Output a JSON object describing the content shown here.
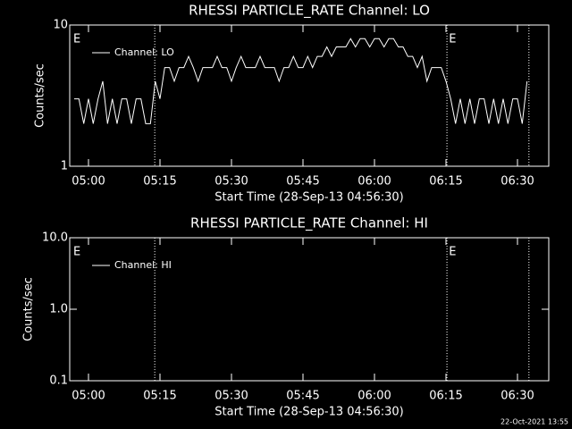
{
  "chart_data": [
    {
      "type": "line",
      "title": "RHESSI PARTICLE_RATE Channel: LO",
      "xlabel": "Start Time (28-Sep-13 04:56:30)",
      "ylabel": "Counts/sec",
      "x": [
        297,
        298,
        299,
        300,
        301,
        302,
        303,
        304,
        305,
        306,
        307,
        308,
        309,
        310,
        311,
        312,
        313,
        314,
        315,
        316,
        317,
        318,
        319,
        320,
        321,
        322,
        323,
        324,
        325,
        326,
        327,
        328,
        329,
        330,
        331,
        332,
        333,
        334,
        335,
        336,
        337,
        338,
        339,
        340,
        341,
        342,
        343,
        344,
        345,
        346,
        347,
        348,
        349,
        350,
        351,
        352,
        353,
        354,
        355,
        356,
        357,
        358,
        359,
        360,
        361,
        362,
        363,
        364,
        365,
        366,
        367,
        368,
        369,
        370,
        371,
        372,
        373,
        374,
        375,
        376,
        377,
        378,
        379,
        380,
        381,
        382,
        383,
        384,
        385,
        386,
        387,
        388,
        389,
        390,
        391,
        392
      ],
      "series": [
        {
          "name": "Channel: LO",
          "color": "#ffffff",
          "values": [
            3,
            3,
            2,
            3,
            2,
            3,
            4,
            2,
            3,
            2,
            3,
            3,
            2,
            3,
            3,
            2,
            2,
            4,
            3,
            5,
            5,
            4,
            5,
            5,
            6,
            5,
            4,
            5,
            5,
            5,
            6,
            5,
            5,
            4,
            5,
            6,
            5,
            5,
            5,
            6,
            5,
            5,
            5,
            4,
            5,
            5,
            6,
            5,
            5,
            6,
            5,
            6,
            6,
            7,
            6,
            7,
            7,
            7,
            8,
            7,
            8,
            8,
            7,
            8,
            8,
            7,
            8,
            8,
            7,
            7,
            6,
            6,
            5,
            6,
            4,
            5,
            5,
            5,
            4,
            3,
            2,
            3,
            2,
            3,
            2,
            3,
            3,
            2,
            3,
            2,
            3,
            2,
            3,
            3,
            2,
            4
          ]
        }
      ],
      "xlim": [
        296.06,
        396.56
      ],
      "xticks": [
        {
          "value": 300,
          "label": "05:00"
        },
        {
          "value": 315,
          "label": "05:15"
        },
        {
          "value": 330,
          "label": "05:30"
        },
        {
          "value": 345,
          "label": "05:45"
        },
        {
          "value": 360,
          "label": "06:00"
        },
        {
          "value": 375,
          "label": "06:15"
        },
        {
          "value": 390,
          "label": "06:30"
        }
      ],
      "ylim": [
        1,
        10
      ],
      "yticks": [
        1,
        10
      ],
      "log_y": true,
      "vlines": [
        313.9,
        375.2,
        392.4
      ],
      "flags": [
        {
          "x": 296.8,
          "label": "E"
        },
        {
          "x": 375.6,
          "label": "E"
        }
      ]
    },
    {
      "type": "line",
      "title": "RHESSI PARTICLE_RATE Channel: HI",
      "xlabel": "Start Time (28-Sep-13 04:56:30)",
      "ylabel": "Counts/sec",
      "x": [],
      "series": [
        {
          "name": "Channel: HI",
          "color": "#ffffff",
          "values": []
        }
      ],
      "xlim": [
        296.06,
        396.56
      ],
      "xticks": [
        {
          "value": 300,
          "label": "05:00"
        },
        {
          "value": 315,
          "label": "05:15"
        },
        {
          "value": 330,
          "label": "05:30"
        },
        {
          "value": 345,
          "label": "05:45"
        },
        {
          "value": 360,
          "label": "06:00"
        },
        {
          "value": 375,
          "label": "06:15"
        },
        {
          "value": 390,
          "label": "06:30"
        }
      ],
      "ylim": [
        0.1,
        10
      ],
      "yticks": [
        0.1,
        {
          "value": 1,
          "label": "1.0"
        },
        {
          "value": 10,
          "label": "10.0"
        }
      ],
      "log_y": true,
      "vlines": [
        313.9,
        375.2,
        392.4
      ],
      "flags": [
        {
          "x": 296.8,
          "label": "E"
        },
        {
          "x": 375.6,
          "label": "E"
        }
      ]
    }
  ],
  "footer": "22-Oct-2021 13:55"
}
